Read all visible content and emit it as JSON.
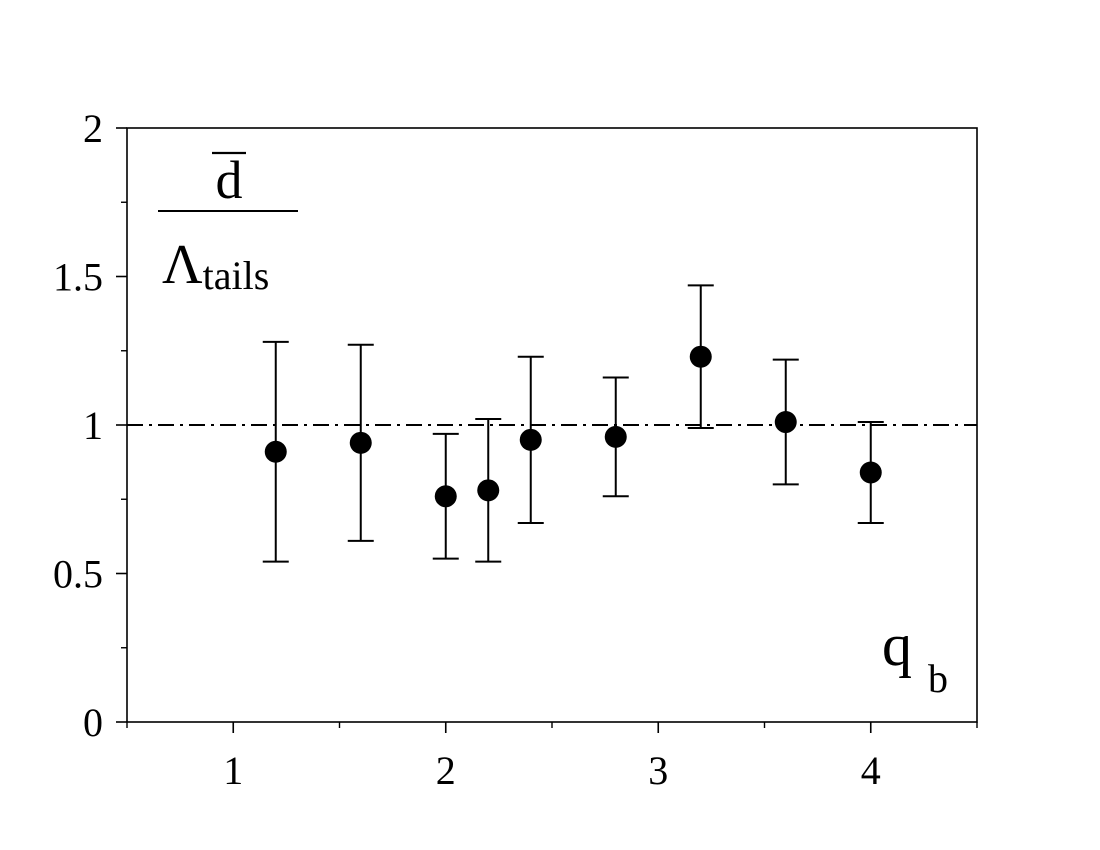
{
  "chart_data": {
    "type": "scatter",
    "x": [
      1.2,
      1.6,
      2.0,
      2.2,
      2.4,
      2.8,
      3.2,
      3.6,
      4.0
    ],
    "y": [
      0.91,
      0.94,
      0.76,
      0.78,
      0.95,
      0.96,
      1.23,
      1.01,
      0.84
    ],
    "err_low": [
      0.54,
      0.61,
      0.55,
      0.54,
      0.67,
      0.76,
      0.99,
      0.8,
      0.67
    ],
    "err_high": [
      1.28,
      1.27,
      0.97,
      1.02,
      1.23,
      1.16,
      1.47,
      1.22,
      1.01
    ],
    "xlim": [
      0.5,
      4.5
    ],
    "ylim": [
      0,
      2
    ],
    "xticks": [
      1,
      2,
      3,
      4
    ],
    "xtick_labels": [
      "1",
      "2",
      "3",
      "4"
    ],
    "yticks": [
      0,
      0.5,
      1,
      1.5,
      2
    ],
    "ytick_labels": [
      "0",
      "0.5",
      "1",
      "1.5",
      "2"
    ],
    "reference_line": 1,
    "ylabel_numerator": "d",
    "ylabel_denominator_main": "Λ",
    "ylabel_denominator_sub": "tails",
    "xlabel_main": "q",
    "xlabel_sub": "b",
    "marker_color": "#000000",
    "grid": false
  }
}
